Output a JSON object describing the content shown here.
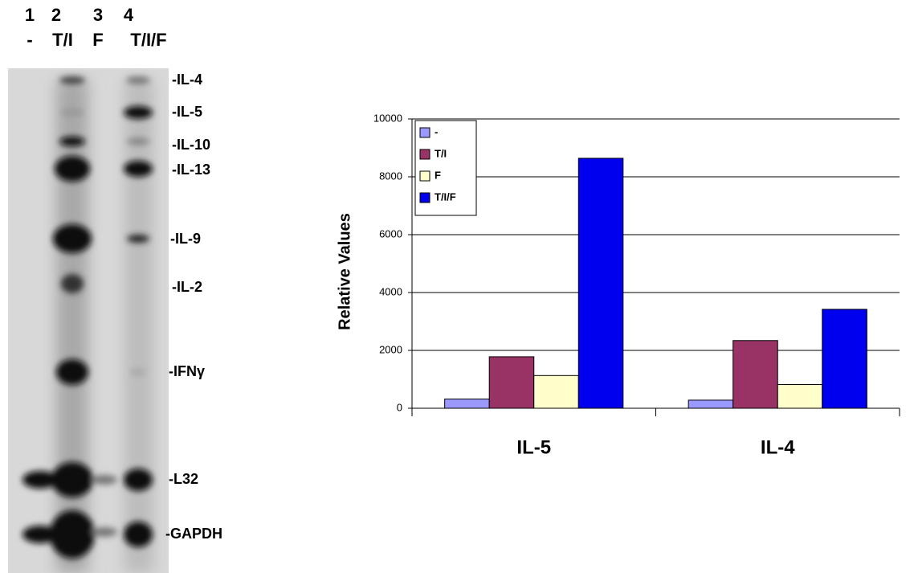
{
  "gel": {
    "lanes": [
      {
        "number": "1",
        "treatment": "-"
      },
      {
        "number": "2",
        "treatment": "T/I"
      },
      {
        "number": "3",
        "treatment": "F"
      },
      {
        "number": "4",
        "treatment": "T/I/F"
      }
    ],
    "bands": [
      "-IL-4",
      "-IL-5",
      "-IL-10",
      "-IL-13",
      "-IL-9",
      "-IL-2",
      "-IFNγ",
      "-L32",
      "-GAPDH"
    ]
  },
  "chart_data": {
    "type": "bar",
    "y_label": "Relative Values",
    "categories": [
      "IL-5",
      "IL-4"
    ],
    "series": [
      {
        "name": "-",
        "color": "#9999ff",
        "values": [
          320,
          280
        ]
      },
      {
        "name": "T/I",
        "color": "#993366",
        "values": [
          1780,
          2340
        ]
      },
      {
        "name": "F",
        "color": "#ffffcc",
        "values": [
          1130,
          820
        ]
      },
      {
        "name": "T/I/F",
        "color": "#0000ee",
        "values": [
          8640,
          3420
        ]
      }
    ],
    "ylim": [
      0,
      10000
    ],
    "yticks": [
      0,
      2000,
      4000,
      6000,
      8000,
      10000
    ],
    "grid": true,
    "legend": "upper left"
  }
}
